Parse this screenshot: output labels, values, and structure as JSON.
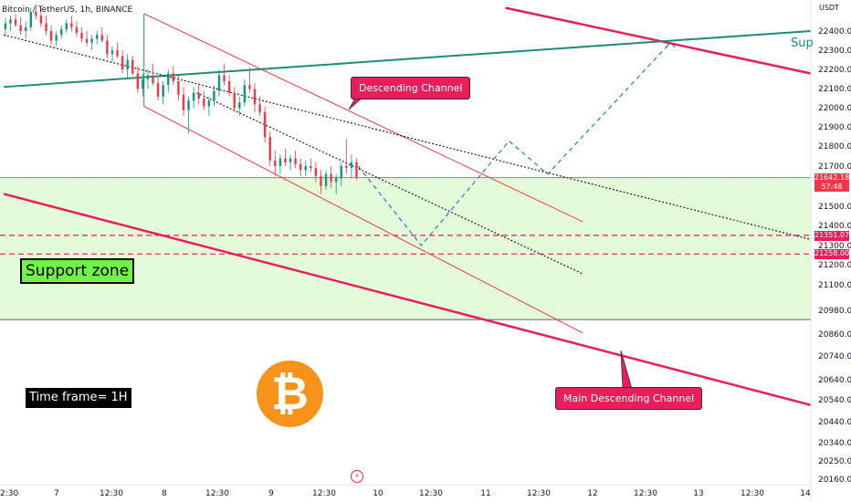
{
  "header": {
    "title": "Bitcoin / TetherUS, 1h, BINANCE",
    "currency": "USDT"
  },
  "annotations": {
    "support_zone": "Support zone",
    "time_frame": "Time frame= 1H",
    "descending_channel": "Descending Channel",
    "main_descending_channel": "Main Descending Channel",
    "sup_label": "Sup",
    "bitcoin_symbol": "₿"
  },
  "price_tags": {
    "current_price": "21642.18",
    "countdown": "57:48",
    "level_1": "21351.07",
    "level_2": "21258.00"
  },
  "colors": {
    "up": "#089981",
    "down": "#f23645",
    "channel": "#f23645",
    "main_channel": "#e91e5a",
    "trendline": "#1e8c7a",
    "support_fill": "#e3fbd9",
    "projection": "#2a7fb8",
    "bitcoin": "#f7931a"
  },
  "chart_data": {
    "type": "candlestick",
    "symbol": "BTCUSDT",
    "interval": "1h",
    "y_axis": {
      "ticks": [
        "22400.00",
        "22300.00",
        "22200.00",
        "22100.00",
        "22000.00",
        "21900.00",
        "21800.00",
        "21700.00",
        "21500.00",
        "21400.00",
        "21300.00",
        "21200.00",
        "21100.00",
        "20980.00",
        "20860.00",
        "20740.00",
        "20640.00",
        "20540.00",
        "20440.00",
        "20340.00",
        "20250.00",
        "20160.00"
      ],
      "tick_values": [
        22400,
        22300,
        22200,
        22100,
        22000,
        21900,
        21800,
        21700,
        21500,
        21400,
        21300,
        21200,
        21100,
        20980,
        20860,
        20740,
        20640,
        20540,
        20440,
        20340,
        20250,
        20160
      ]
    },
    "x_axis": {
      "ticks": [
        "2:30",
        "7",
        "12:30",
        "8",
        "12:30",
        "9",
        "12:30",
        "10",
        "12:30",
        "11",
        "12:30",
        "12",
        "12:30",
        "13",
        "12:30",
        "14"
      ]
    },
    "support_zone": {
      "top": 21642,
      "bottom": 20935
    },
    "levels": [
      21351.07,
      21258.0
    ],
    "current_price": 21642.18,
    "candles": [
      {
        "o": 22410,
        "h": 22470,
        "l": 22370,
        "c": 22440
      },
      {
        "o": 22440,
        "h": 22480,
        "l": 22400,
        "c": 22460
      },
      {
        "o": 22460,
        "h": 22490,
        "l": 22420,
        "c": 22430
      },
      {
        "o": 22430,
        "h": 22470,
        "l": 22380,
        "c": 22400
      },
      {
        "o": 22400,
        "h": 22450,
        "l": 22360,
        "c": 22420
      },
      {
        "o": 22420,
        "h": 22520,
        "l": 22400,
        "c": 22500
      },
      {
        "o": 22500,
        "h": 22540,
        "l": 22460,
        "c": 22480
      },
      {
        "o": 22480,
        "h": 22520,
        "l": 22420,
        "c": 22440
      },
      {
        "o": 22440,
        "h": 22480,
        "l": 22380,
        "c": 22400
      },
      {
        "o": 22400,
        "h": 22430,
        "l": 22330,
        "c": 22350
      },
      {
        "o": 22350,
        "h": 22400,
        "l": 22320,
        "c": 22380
      },
      {
        "o": 22380,
        "h": 22430,
        "l": 22360,
        "c": 22410
      },
      {
        "o": 22410,
        "h": 22460,
        "l": 22390,
        "c": 22440
      },
      {
        "o": 22440,
        "h": 22480,
        "l": 22400,
        "c": 22420
      },
      {
        "o": 22420,
        "h": 22450,
        "l": 22370,
        "c": 22390
      },
      {
        "o": 22390,
        "h": 22420,
        "l": 22340,
        "c": 22360
      },
      {
        "o": 22360,
        "h": 22400,
        "l": 22320,
        "c": 22340
      },
      {
        "o": 22340,
        "h": 22380,
        "l": 22300,
        "c": 22360
      },
      {
        "o": 22360,
        "h": 22400,
        "l": 22330,
        "c": 22380
      },
      {
        "o": 22380,
        "h": 22420,
        "l": 22340,
        "c": 22350
      },
      {
        "o": 22350,
        "h": 22380,
        "l": 22260,
        "c": 22280
      },
      {
        "o": 22280,
        "h": 22320,
        "l": 22240,
        "c": 22300
      },
      {
        "o": 22300,
        "h": 22340,
        "l": 22260,
        "c": 22270
      },
      {
        "o": 22270,
        "h": 22300,
        "l": 22180,
        "c": 22200
      },
      {
        "o": 22200,
        "h": 22280,
        "l": 22150,
        "c": 22250
      },
      {
        "o": 22250,
        "h": 22270,
        "l": 22170,
        "c": 22180
      },
      {
        "o": 22180,
        "h": 22220,
        "l": 22080,
        "c": 22100
      },
      {
        "o": 22100,
        "h": 22180,
        "l": 22060,
        "c": 22150
      },
      {
        "o": 22150,
        "h": 22200,
        "l": 22100,
        "c": 22170
      },
      {
        "o": 22170,
        "h": 22230,
        "l": 22120,
        "c": 22130
      },
      {
        "o": 22130,
        "h": 22160,
        "l": 22040,
        "c": 22060
      },
      {
        "o": 22060,
        "h": 22140,
        "l": 22020,
        "c": 22120
      },
      {
        "o": 22120,
        "h": 22200,
        "l": 22080,
        "c": 22180
      },
      {
        "o": 22180,
        "h": 22220,
        "l": 22120,
        "c": 22140
      },
      {
        "o": 22140,
        "h": 22170,
        "l": 22040,
        "c": 22070
      },
      {
        "o": 22070,
        "h": 22110,
        "l": 21960,
        "c": 21990
      },
      {
        "o": 21990,
        "h": 22060,
        "l": 21870,
        "c": 22040
      },
      {
        "o": 22040,
        "h": 22110,
        "l": 22000,
        "c": 22080
      },
      {
        "o": 22080,
        "h": 22130,
        "l": 22020,
        "c": 22050
      },
      {
        "o": 22050,
        "h": 22090,
        "l": 21990,
        "c": 22010
      },
      {
        "o": 22010,
        "h": 22060,
        "l": 21960,
        "c": 22040
      },
      {
        "o": 22040,
        "h": 22120,
        "l": 22010,
        "c": 22090
      },
      {
        "o": 22090,
        "h": 22200,
        "l": 22060,
        "c": 22170
      },
      {
        "o": 22170,
        "h": 22230,
        "l": 22120,
        "c": 22140
      },
      {
        "o": 22140,
        "h": 22170,
        "l": 22060,
        "c": 22080
      },
      {
        "o": 22080,
        "h": 22110,
        "l": 21980,
        "c": 22000
      },
      {
        "o": 22000,
        "h": 22060,
        "l": 21960,
        "c": 22030
      },
      {
        "o": 22030,
        "h": 22150,
        "l": 22010,
        "c": 22120
      },
      {
        "o": 22120,
        "h": 22210,
        "l": 22080,
        "c": 22100
      },
      {
        "o": 22100,
        "h": 22130,
        "l": 21980,
        "c": 22020
      },
      {
        "o": 22020,
        "h": 22060,
        "l": 21960,
        "c": 21980
      },
      {
        "o": 21980,
        "h": 22010,
        "l": 21820,
        "c": 21850
      },
      {
        "o": 21850,
        "h": 21880,
        "l": 21700,
        "c": 21730
      },
      {
        "o": 21730,
        "h": 21780,
        "l": 21650,
        "c": 21700
      },
      {
        "o": 21700,
        "h": 21760,
        "l": 21660,
        "c": 21740
      },
      {
        "o": 21740,
        "h": 21790,
        "l": 21700,
        "c": 21720
      },
      {
        "o": 21720,
        "h": 21760,
        "l": 21680,
        "c": 21740
      },
      {
        "o": 21740,
        "h": 21780,
        "l": 21690,
        "c": 21710
      },
      {
        "o": 21710,
        "h": 21740,
        "l": 21650,
        "c": 21680
      },
      {
        "o": 21680,
        "h": 21730,
        "l": 21650,
        "c": 21700
      },
      {
        "o": 21700,
        "h": 21740,
        "l": 21670,
        "c": 21690
      },
      {
        "o": 21690,
        "h": 21720,
        "l": 21620,
        "c": 21650
      },
      {
        "o": 21650,
        "h": 21680,
        "l": 21560,
        "c": 21600
      },
      {
        "o": 21600,
        "h": 21680,
        "l": 21580,
        "c": 21660
      },
      {
        "o": 21660,
        "h": 21700,
        "l": 21590,
        "c": 21620
      },
      {
        "o": 21620,
        "h": 21660,
        "l": 21560,
        "c": 21640
      },
      {
        "o": 21640,
        "h": 21720,
        "l": 21600,
        "c": 21700
      },
      {
        "o": 21700,
        "h": 21840,
        "l": 21660,
        "c": 21690
      },
      {
        "o": 21690,
        "h": 21760,
        "l": 21640,
        "c": 21720
      },
      {
        "o": 21720,
        "h": 21740,
        "l": 21630,
        "c": 21642
      }
    ],
    "x_index_range": [
      0,
      230
    ],
    "trendlines": [
      {
        "name": "descending-channel-upper",
        "p1": [
          40,
          22490
        ],
        "p2": [
          165,
          21420
        ]
      },
      {
        "name": "descending-channel-lower",
        "p1": [
          40,
          22010
        ],
        "p2": [
          165,
          20870
        ]
      },
      {
        "name": "main-channel-upper",
        "p1": [
          143,
          22520
        ],
        "p2": [
          230,
          22180
        ]
      },
      {
        "name": "main-channel-lower",
        "p1": [
          0,
          21560
        ],
        "p2": [
          230,
          20520
        ]
      },
      {
        "name": "ascending-trendline",
        "p1": [
          0,
          22110
        ],
        "p2": [
          230,
          22400
        ]
      },
      {
        "name": "dotted-trendline-1",
        "p1": [
          0,
          22380
        ],
        "p2": [
          230,
          21330
        ]
      },
      {
        "name": "dotted-trendline-2",
        "p1": [
          55,
          22080
        ],
        "p2": [
          165,
          21160
        ]
      }
    ],
    "projection_path": [
      [
        101,
        21700
      ],
      [
        119,
        21300
      ],
      [
        144,
        21830
      ],
      [
        155,
        21660
      ],
      [
        190,
        22340
      ]
    ]
  }
}
